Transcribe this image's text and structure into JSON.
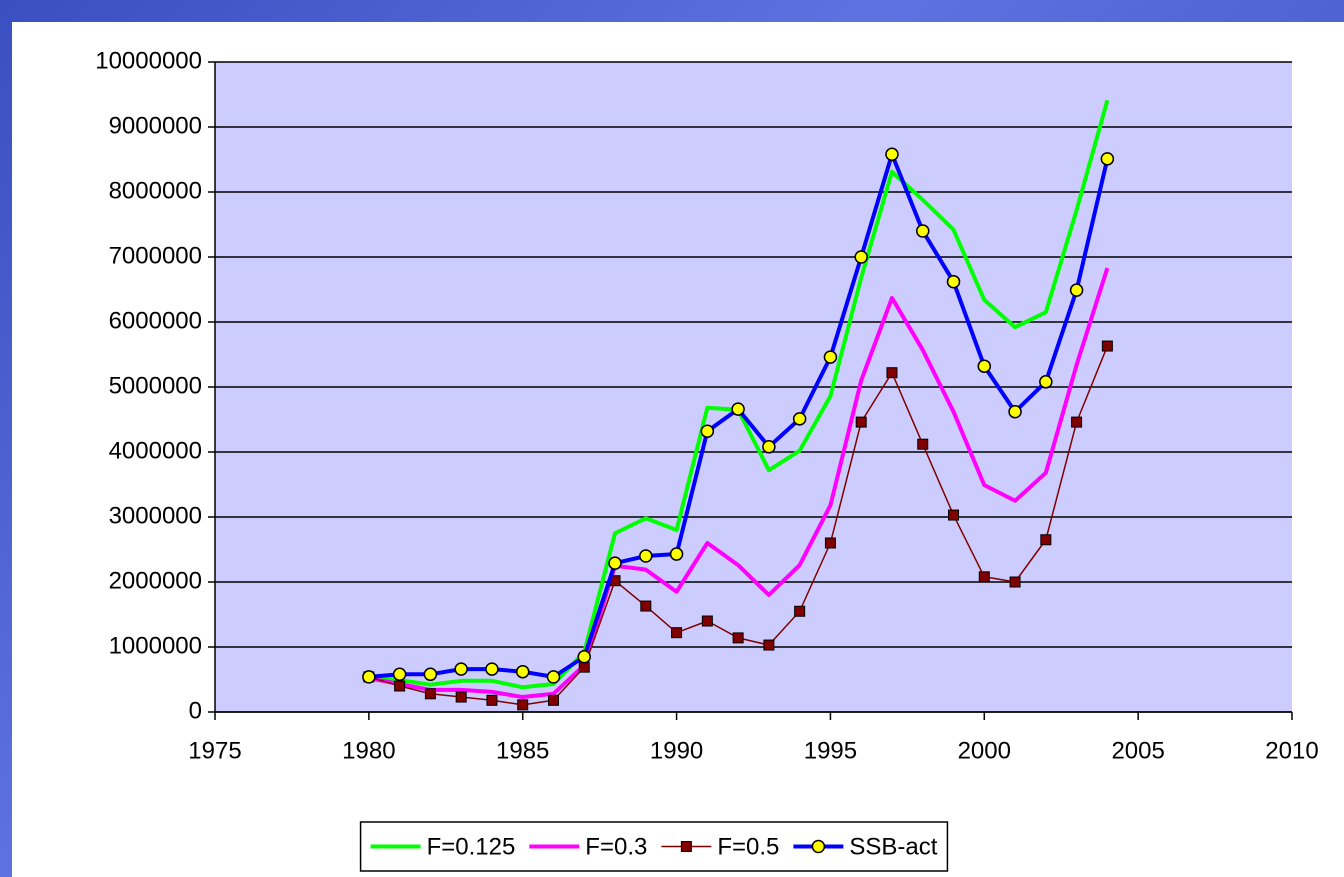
{
  "chart_data": {
    "type": "line",
    "x": [
      1980,
      1981,
      1982,
      1983,
      1984,
      1985,
      1986,
      1987,
      1988,
      1989,
      1990,
      1991,
      1992,
      1993,
      1994,
      1995,
      1996,
      1997,
      1998,
      1999,
      2000,
      2001,
      2002,
      2003,
      2004
    ],
    "series": [
      {
        "name": "F=0.125",
        "color": "#00ff00",
        "line_width": 4,
        "values": [
          540000,
          490000,
          420000,
          480000,
          480000,
          380000,
          430000,
          920000,
          2750000,
          2980000,
          2800000,
          4680000,
          4650000,
          3720000,
          4020000,
          4860000,
          6680000,
          8310000,
          7880000,
          7420000,
          6340000,
          5920000,
          6150000,
          7720000,
          9410000
        ]
      },
      {
        "name": "F=0.3",
        "color": "#ff00ff",
        "line_width": 4,
        "values": [
          520000,
          430000,
          340000,
          340000,
          310000,
          230000,
          280000,
          720000,
          2250000,
          2190000,
          1850000,
          2600000,
          2260000,
          1800000,
          2260000,
          3180000,
          5100000,
          6370000,
          5570000,
          4620000,
          3490000,
          3250000,
          3680000,
          5340000,
          6830000
        ]
      },
      {
        "name": "F=0.5",
        "color": "#800000",
        "line_width": 1.5,
        "marker": "square",
        "marker_color": "#800000",
        "values": [
          540000,
          400000,
          280000,
          230000,
          180000,
          110000,
          180000,
          690000,
          2020000,
          1630000,
          1220000,
          1400000,
          1140000,
          1030000,
          1550000,
          2600000,
          4460000,
          5220000,
          4120000,
          3030000,
          2080000,
          2000000,
          2650000,
          4460000,
          5630000
        ]
      },
      {
        "name": "SSB-act",
        "color": "#0000ff",
        "line_width": 4,
        "marker": "circle",
        "marker_color": "#ffff00",
        "values": [
          540000,
          580000,
          580000,
          660000,
          660000,
          620000,
          540000,
          850000,
          2290000,
          2400000,
          2430000,
          4320000,
          4660000,
          4080000,
          4510000,
          5460000,
          7000000,
          8580000,
          7400000,
          6620000,
          5320000,
          4620000,
          5080000,
          6490000,
          8510000
        ]
      }
    ],
    "xlim": [
      1975,
      2010
    ],
    "xticks": [
      1975,
      1980,
      1985,
      1990,
      1995,
      2000,
      2005,
      2010
    ],
    "ylim": [
      0,
      10000000
    ],
    "yticks": [
      0,
      1000000,
      2000000,
      3000000,
      4000000,
      5000000,
      6000000,
      7000000,
      8000000,
      9000000,
      10000000
    ],
    "grid": true,
    "plot_background": "#ccccff",
    "legend": "bottom"
  }
}
